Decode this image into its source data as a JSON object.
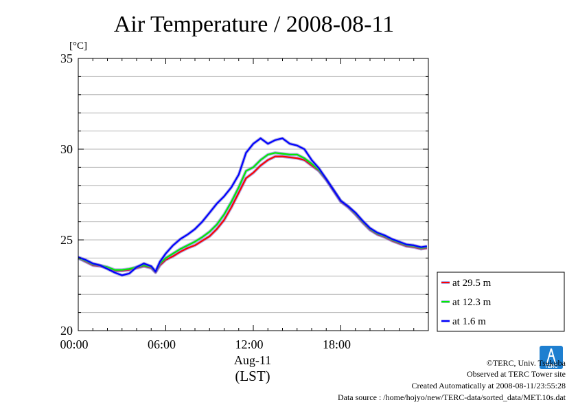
{
  "chart_data": {
    "type": "line",
    "title": "Air Temperature / 2008-08-11",
    "ylabel": "[°C]",
    "xlabel": "Aug-11",
    "xlabel2": "(LST)",
    "xlim": [
      0,
      24
    ],
    "ylim": [
      20,
      35
    ],
    "grid": true,
    "legend_position": "bottom-right-outside",
    "y_ticks": [
      {
        "value": 20,
        "label": "20"
      },
      {
        "value": 25,
        "label": "25"
      },
      {
        "value": 30,
        "label": "30"
      },
      {
        "value": 35,
        "label": "35"
      }
    ],
    "x_ticks": [
      {
        "value": 0,
        "label": "00:00"
      },
      {
        "value": 6,
        "label": "06:00"
      },
      {
        "value": 12,
        "label": "12:00"
      },
      {
        "value": 18,
        "label": "18:00"
      }
    ],
    "x": [
      0,
      0.5,
      1,
      1.5,
      2,
      2.5,
      3,
      3.5,
      4,
      4.5,
      5,
      5.3,
      5.6,
      6,
      6.5,
      7,
      7.5,
      8,
      8.5,
      9,
      9.5,
      10,
      10.5,
      11,
      11.5,
      12,
      12.5,
      13,
      13.5,
      14,
      14.5,
      15,
      15.5,
      16,
      16.5,
      17,
      17.5,
      18,
      18.5,
      19,
      19.5,
      20,
      20.5,
      21,
      21.5,
      22,
      22.5,
      23,
      23.5,
      23.9
    ],
    "series": [
      {
        "name": "at 29.5 m",
        "color": "#ff0000",
        "values": [
          24.0,
          23.8,
          23.6,
          23.55,
          23.45,
          23.3,
          23.3,
          23.35,
          23.45,
          23.55,
          23.45,
          23.2,
          23.6,
          23.9,
          24.1,
          24.35,
          24.55,
          24.7,
          24.95,
          25.2,
          25.6,
          26.1,
          26.8,
          27.6,
          28.4,
          28.7,
          29.1,
          29.4,
          29.6,
          29.6,
          29.55,
          29.5,
          29.4,
          29.1,
          28.8,
          28.3,
          27.7,
          27.1,
          26.8,
          26.4,
          25.95,
          25.55,
          25.3,
          25.15,
          24.95,
          24.8,
          24.65,
          24.6,
          24.5,
          24.55
        ]
      },
      {
        "name": "at 12.3 m",
        "color": "#00ee00",
        "values": [
          24.0,
          23.85,
          23.65,
          23.6,
          23.5,
          23.35,
          23.35,
          23.4,
          23.5,
          23.6,
          23.5,
          23.25,
          23.7,
          24.0,
          24.25,
          24.5,
          24.7,
          24.9,
          25.15,
          25.45,
          25.85,
          26.4,
          27.1,
          27.9,
          28.8,
          29.0,
          29.4,
          29.7,
          29.8,
          29.75,
          29.7,
          29.7,
          29.5,
          29.2,
          28.85,
          28.35,
          27.75,
          27.15,
          26.85,
          26.45,
          26.0,
          25.6,
          25.35,
          25.2,
          25.0,
          24.85,
          24.7,
          24.65,
          24.55,
          24.6
        ]
      },
      {
        "name": "at 1.6 m",
        "color": "#0000ff",
        "values": [
          24.05,
          23.9,
          23.7,
          23.6,
          23.4,
          23.2,
          23.05,
          23.15,
          23.5,
          23.7,
          23.55,
          23.25,
          23.8,
          24.25,
          24.7,
          25.05,
          25.3,
          25.6,
          26.0,
          26.5,
          27.0,
          27.4,
          27.9,
          28.6,
          29.8,
          30.3,
          30.6,
          30.3,
          30.5,
          30.6,
          30.3,
          30.2,
          30.0,
          29.4,
          28.95,
          28.35,
          27.75,
          27.15,
          26.85,
          26.5,
          26.05,
          25.65,
          25.4,
          25.25,
          25.05,
          24.9,
          24.75,
          24.7,
          24.6,
          24.65
        ]
      }
    ]
  },
  "footer": {
    "copyright": "©TERC, Univ. Tsukuba",
    "site": "Observed at TERC Tower site",
    "created": "Created Automatically at 2008-08-11/23:55:28",
    "source": "Data source : /home/hojyo/new/TERC-data/sorted_data/MET.10s.dat",
    "logo_text": "TERC"
  },
  "colors": {
    "logo": "#1e7fd0"
  }
}
